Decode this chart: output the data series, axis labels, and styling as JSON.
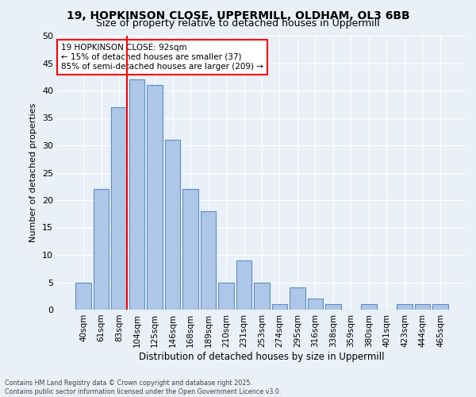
{
  "title_line1": "19, HOPKINSON CLOSE, UPPERMILL, OLDHAM, OL3 6BB",
  "title_line2": "Size of property relative to detached houses in Uppermill",
  "xlabel": "Distribution of detached houses by size in Uppermill",
  "ylabel": "Number of detached properties",
  "categories": [
    "40sqm",
    "61sqm",
    "83sqm",
    "104sqm",
    "125sqm",
    "146sqm",
    "168sqm",
    "189sqm",
    "210sqm",
    "231sqm",
    "253sqm",
    "274sqm",
    "295sqm",
    "316sqm",
    "338sqm",
    "359sqm",
    "380sqm",
    "401sqm",
    "423sqm",
    "444sqm",
    "465sqm"
  ],
  "values": [
    5,
    22,
    37,
    42,
    41,
    31,
    22,
    18,
    5,
    9,
    5,
    1,
    4,
    2,
    1,
    0,
    1,
    0,
    1,
    1,
    1
  ],
  "bar_color": "#aec6e8",
  "bar_edge_color": "#5a8fc2",
  "vline_x_index": 2,
  "vline_color": "red",
  "annotation_text": "19 HOPKINSON CLOSE: 92sqm\n← 15% of detached houses are smaller (37)\n85% of semi-detached houses are larger (209) →",
  "annotation_box_color": "white",
  "annotation_box_edge_color": "red",
  "ylim": [
    0,
    50
  ],
  "yticks": [
    0,
    5,
    10,
    15,
    20,
    25,
    30,
    35,
    40,
    45,
    50
  ],
  "footnote_line1": "Contains HM Land Registry data © Crown copyright and database right 2025.",
  "footnote_line2": "Contains public sector information licensed under the Open Government Licence v3.0.",
  "bg_color": "#eaf0f8",
  "plot_bg_color": "#eaf0f8",
  "grid_color": "#ffffff",
  "title_fontsize": 10,
  "subtitle_fontsize": 9,
  "bar_width": 0.85
}
